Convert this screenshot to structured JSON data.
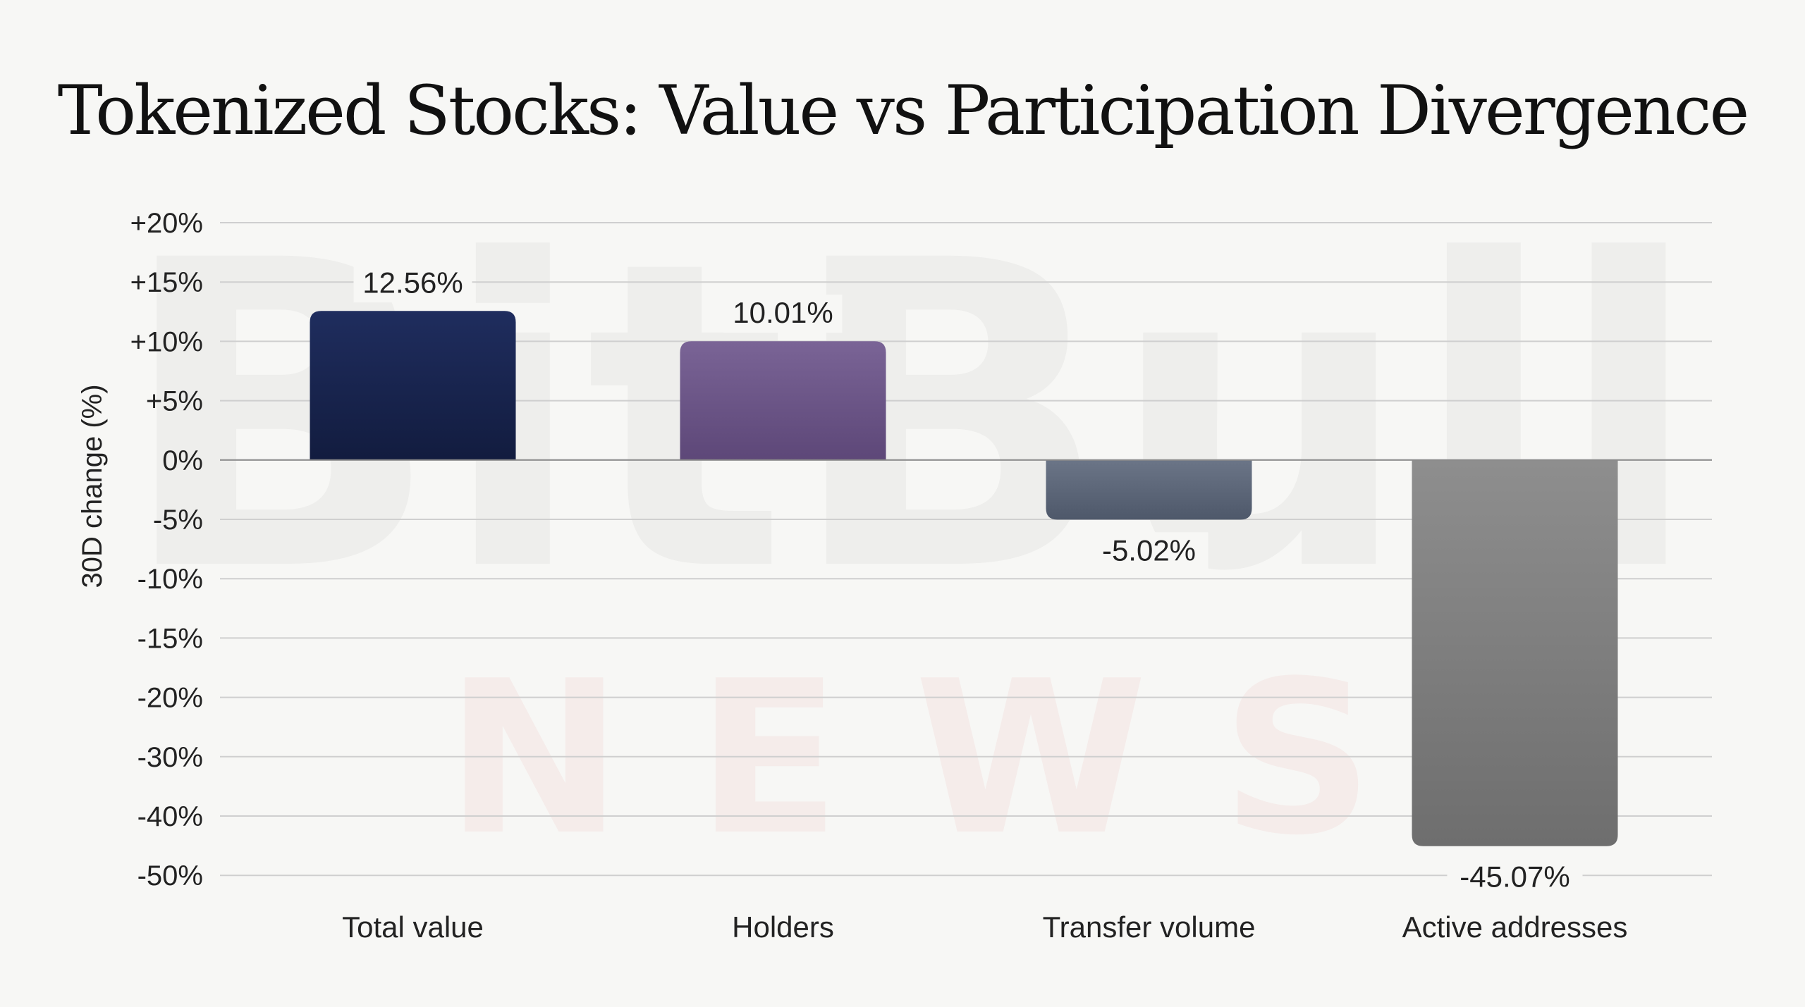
{
  "watermark": {
    "brand": "BitBull",
    "news": "N E W S"
  },
  "colors": {
    "background": "#f7f7f5",
    "grid": "#cfcfcf",
    "zero_line": "#8a8a8a"
  },
  "chart_data": {
    "type": "bar",
    "title": "Tokenized Stocks: Value vs Participation Divergence",
    "xlabel": "",
    "ylabel": "30D change (%)",
    "grid": true,
    "categories": [
      "Total value",
      "Holders",
      "Transfer volume",
      "Active addresses"
    ],
    "values": [
      12.56,
      10.01,
      -5.02,
      -45.07
    ],
    "value_labels": [
      "12.56%",
      "10.01%",
      "-5.02%",
      "-45.07%"
    ],
    "bar_colors": [
      [
        "#1f2d5e",
        "#121c3f"
      ],
      [
        "#7a6496",
        "#5d4778"
      ],
      [
        "#6b7587",
        "#4e586a"
      ],
      [
        "#8e8e8e",
        "#6e6e6e"
      ]
    ],
    "y_ticks": [
      {
        "label": "+20%",
        "value": 20
      },
      {
        "label": "+15%",
        "value": 15
      },
      {
        "label": "+10%",
        "value": 10
      },
      {
        "label": "+5%",
        "value": 5
      },
      {
        "label": "0%",
        "value": 0
      },
      {
        "label": "-5%",
        "value": -5
      },
      {
        "label": "-10%",
        "value": -10
      },
      {
        "label": "-15%",
        "value": -15
      },
      {
        "label": "-20%",
        "value": -20
      },
      {
        "label": "-30%",
        "value": -30
      },
      {
        "label": "-40%",
        "value": -40
      },
      {
        "label": "-50%",
        "value": -50
      }
    ],
    "scale_note": "non-linear axis: evenly spaced ticks",
    "ylim": [
      -50,
      20
    ]
  }
}
